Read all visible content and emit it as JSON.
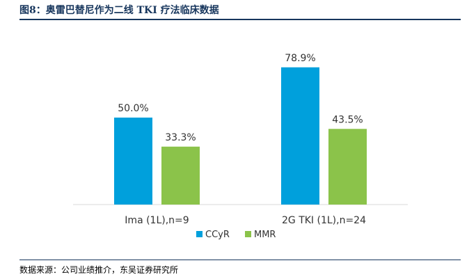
{
  "header": {
    "title": "图8：奥雷巴替尼作为二线 TKI 疗法临床数据"
  },
  "footer": {
    "source": "数据来源：公司业绩推介，东吴证券研究所"
  },
  "chart_data": {
    "type": "bar",
    "categories": [
      "Ima (1L),n=9",
      "2G TKI (1L),n=24"
    ],
    "series": [
      {
        "name": "CCyR",
        "values": [
          50.0,
          78.9
        ],
        "labels": [
          "50.0%",
          "78.9%"
        ],
        "color": "#00a0dc"
      },
      {
        "name": "MMR",
        "values": [
          33.3,
          43.5
        ],
        "labels": [
          "33.3%",
          "43.5%"
        ],
        "color": "#8bc34a"
      }
    ],
    "title": "",
    "xlabel": "",
    "ylabel": "",
    "ylim": [
      0,
      100
    ],
    "unit": "%",
    "grid": false,
    "legend_position": "bottom"
  }
}
